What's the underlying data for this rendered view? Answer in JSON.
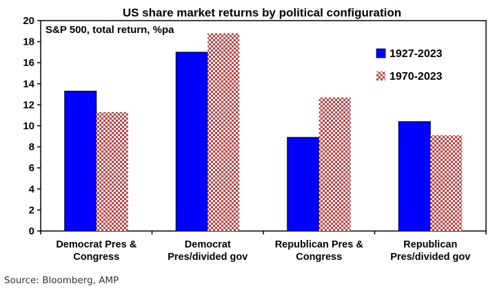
{
  "chart_data": {
    "type": "bar",
    "title": "US share market returns by political configuration",
    "subtitle": "S&P 500, total return, %pa",
    "categories": [
      [
        "Democrat Pres &",
        "Congress"
      ],
      [
        "Democrat",
        "Pres/divided gov"
      ],
      [
        "Republican Pres &",
        "Congress"
      ],
      [
        "Republican",
        "Pres/divided gov"
      ]
    ],
    "series": [
      {
        "name": "1927-2023",
        "values": [
          13.3,
          17.0,
          8.9,
          10.4
        ],
        "color": "#0000ff",
        "pattern": "solid"
      },
      {
        "name": "1970-2023",
        "values": [
          11.3,
          18.8,
          12.7,
          9.1
        ],
        "color": "#e03030",
        "pattern": "checkerboard"
      }
    ],
    "ylim": [
      0,
      20
    ],
    "yticks": [
      0,
      2,
      4,
      6,
      8,
      10,
      12,
      14,
      16,
      18,
      20
    ],
    "legend_position": "top-right",
    "grid": false
  },
  "source": "Source: Bloomberg, AMP"
}
